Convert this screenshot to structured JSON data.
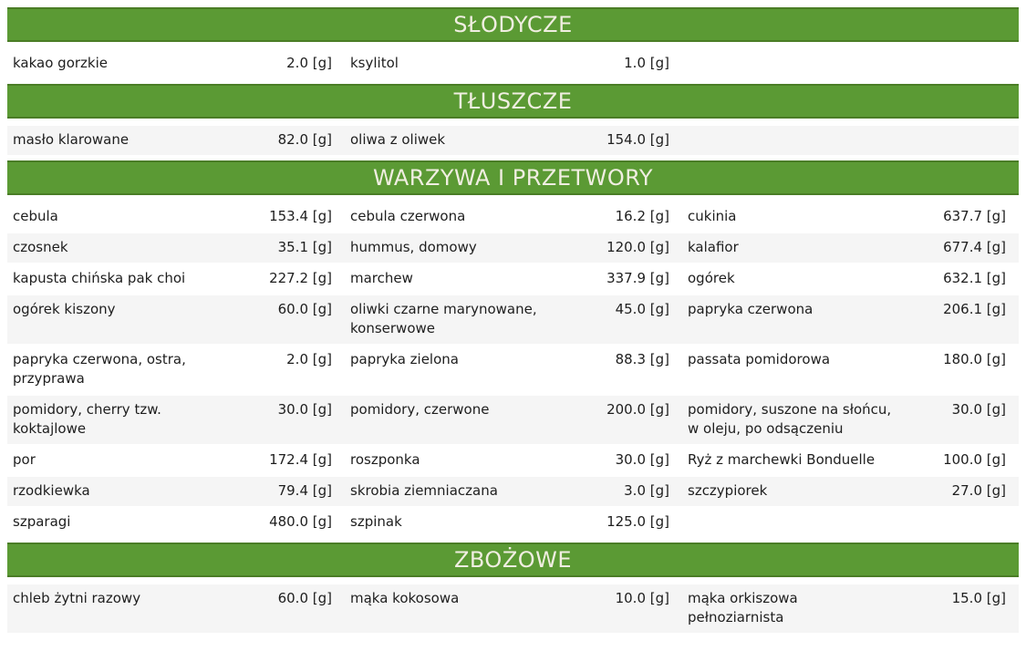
{
  "unit": "[g]",
  "colors": {
    "header_bg": "#5b9a34",
    "header_border": "#4a7d26",
    "header_text": "#f0eee1",
    "row_stripe": "#f5f5f5",
    "row_text": "#1e1e1e"
  },
  "sections": [
    {
      "title": "SŁODYCZE",
      "rows": [
        [
          {
            "name": "kakao gorzkie",
            "value": "2.0"
          },
          {
            "name": "ksylitol",
            "value": "1.0"
          },
          null
        ]
      ]
    },
    {
      "title": "TŁUSZCZE",
      "rows": [
        [
          {
            "name": "masło klarowane",
            "value": "82.0"
          },
          {
            "name": "oliwa z oliwek",
            "value": "154.0"
          },
          null
        ]
      ]
    },
    {
      "title": "WARZYWA I PRZETWORY",
      "rows": [
        [
          {
            "name": "cebula",
            "value": "153.4"
          },
          {
            "name": "cebula czerwona",
            "value": "16.2"
          },
          {
            "name": "cukinia",
            "value": "637.7"
          }
        ],
        [
          {
            "name": "czosnek",
            "value": "35.1"
          },
          {
            "name": "hummus, domowy",
            "value": "120.0"
          },
          {
            "name": "kalafior",
            "value": "677.4"
          }
        ],
        [
          {
            "name": "kapusta chińska pak choi",
            "value": "227.2"
          },
          {
            "name": "marchew",
            "value": "337.9"
          },
          {
            "name": "ogórek",
            "value": "632.1"
          }
        ],
        [
          {
            "name": "ogórek kiszony",
            "value": "60.0"
          },
          {
            "name": "oliwki czarne marynowane, konserwowe",
            "value": "45.0"
          },
          {
            "name": "papryka czerwona",
            "value": "206.1"
          }
        ],
        [
          {
            "name": "papryka czerwona, ostra, przyprawa",
            "value": "2.0"
          },
          {
            "name": "papryka zielona",
            "value": "88.3"
          },
          {
            "name": "passata pomidorowa",
            "value": "180.0"
          }
        ],
        [
          {
            "name": "pomidory, cherry tzw. koktajlowe",
            "value": "30.0"
          },
          {
            "name": "pomidory, czerwone",
            "value": "200.0"
          },
          {
            "name": "pomidory, suszone na słońcu, w oleju, po odsączeniu",
            "value": "30.0"
          }
        ],
        [
          {
            "name": "por",
            "value": "172.4"
          },
          {
            "name": "roszponka",
            "value": "30.0"
          },
          {
            "name": "Ryż z marchewki Bonduelle",
            "value": "100.0"
          }
        ],
        [
          {
            "name": "rzodkiewka",
            "value": "79.4"
          },
          {
            "name": "skrobia ziemniaczana",
            "value": "3.0"
          },
          {
            "name": "szczypiorek",
            "value": "27.0"
          }
        ],
        [
          {
            "name": "szparagi",
            "value": "480.0"
          },
          {
            "name": "szpinak",
            "value": "125.0"
          },
          null
        ]
      ]
    },
    {
      "title": "ZBOŻOWE",
      "rows": [
        [
          {
            "name": "chleb żytni razowy",
            "value": "60.0"
          },
          {
            "name": "mąka kokosowa",
            "value": "10.0"
          },
          {
            "name": "mąka orkiszowa pełnoziarnista",
            "value": "15.0"
          }
        ]
      ]
    }
  ]
}
